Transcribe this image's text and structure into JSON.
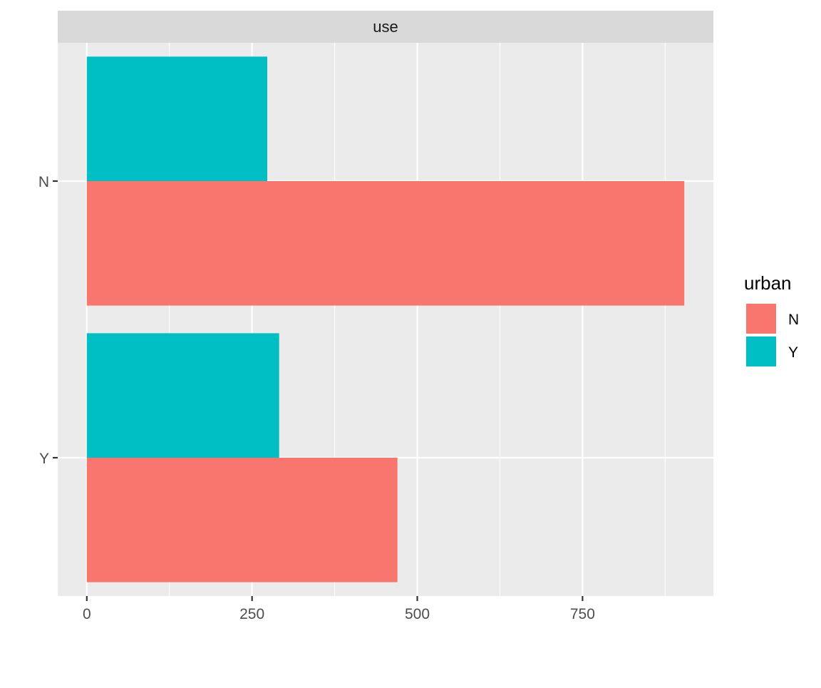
{
  "chart_data": {
    "type": "bar",
    "orientation": "horizontal",
    "facet_label": "use",
    "categories": [
      "N",
      "Y"
    ],
    "legend": {
      "title": "urban",
      "placement": "right",
      "entries": [
        {
          "label": "N",
          "color": "#F8766D"
        },
        {
          "label": "Y",
          "color": "#00BFC4"
        }
      ]
    },
    "series": [
      {
        "name": "N",
        "color": "#F8766D",
        "values": [
          904,
          470
        ]
      },
      {
        "name": "Y",
        "color": "#00BFC4",
        "values": [
          273,
          291
        ]
      }
    ],
    "x_ticks": [
      0,
      250,
      500,
      750
    ],
    "xlim": [
      -44,
      948
    ],
    "xlabel": "",
    "ylabel": "",
    "grid": true,
    "colors": {
      "panel_background": "#EBEBEB",
      "strip_background": "#D9D9D9",
      "grid_major": "#FFFFFF",
      "tick_text": "#4D4D4D"
    }
  }
}
